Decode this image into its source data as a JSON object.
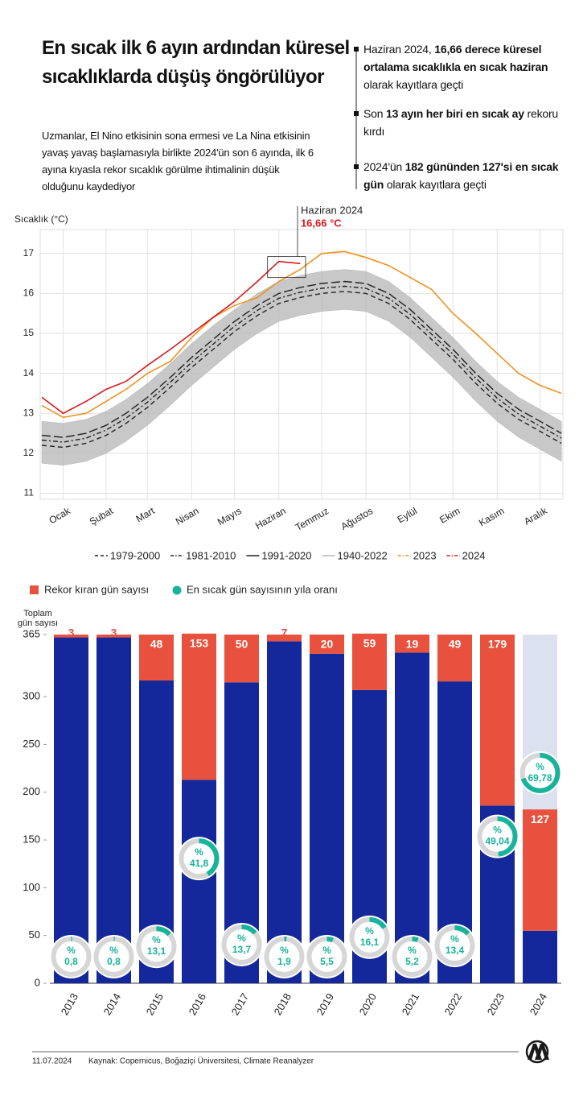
{
  "header": {
    "title": "En sıcak ilk 6 ayın ardından küresel sıcaklıklarda düşüş öngörülüyor",
    "subtitle": "Uzmanlar, El Nino etkisinin sona ermesi ve La Nina etkisinin yavaş yavaş başlamasıyla birlikte 2024'ün son 6 ayında, ilk 6 ayına kıyasla rekor sıcaklık görülme ihtimalinin düşük olduğunu kaydediyor"
  },
  "highlights": [
    [
      {
        "text": "Haziran 2024, "
      },
      {
        "text": "16,66 derece küresel ortalama sıcaklıkla en sıcak haziran",
        "bold": true
      },
      {
        "text": " olarak kayıtlara geçti"
      }
    ],
    [
      {
        "text": "Son "
      },
      {
        "text": "13 ayın her biri en sıcak ay",
        "bold": true
      },
      {
        "text": " rekoru kırdı"
      }
    ],
    [
      {
        "text": "2024'ün "
      },
      {
        "text": "182 gününden 127'si en sıcak gün",
        "bold": true
      },
      {
        "text": " olarak kayıtlara geçti"
      }
    ]
  ],
  "chart_data": [
    {
      "type": "line",
      "y_label": "Sıcaklık (°C)",
      "x": [
        1,
        16,
        32,
        46,
        60,
        75,
        91,
        106,
        121,
        136,
        152,
        167,
        182,
        197,
        213,
        228,
        244,
        259,
        274,
        289,
        305,
        320,
        335,
        350,
        365
      ],
      "xlim": [
        1,
        366
      ],
      "xticks": [
        {
          "value": 16,
          "label": "Ocak"
        },
        {
          "value": 46,
          "label": "Şubat"
        },
        {
          "value": 75,
          "label": "Mart"
        },
        {
          "value": 106,
          "label": "Nisan"
        },
        {
          "value": 136,
          "label": "Mayıs"
        },
        {
          "value": 167,
          "label": "Haziran"
        },
        {
          "value": 197,
          "label": "Temmuz"
        },
        {
          "value": 228,
          "label": "Ağustos"
        },
        {
          "value": 259,
          "label": "Eylül"
        },
        {
          "value": 289,
          "label": "Ekim"
        },
        {
          "value": 320,
          "label": "Kasım"
        },
        {
          "value": 350,
          "label": "Aralık"
        }
      ],
      "ylim": [
        10.85,
        17.6
      ],
      "yticks": [
        11,
        12,
        13,
        14,
        15,
        16,
        17
      ],
      "grid": true,
      "series": [
        {
          "name": "1979-2000",
          "color": "#222222",
          "style": "dashed",
          "values": [
            12.2,
            12.15,
            12.25,
            12.45,
            12.75,
            13.15,
            13.65,
            14.15,
            14.6,
            15.05,
            15.45,
            15.75,
            15.9,
            16.0,
            16.05,
            16.0,
            15.75,
            15.35,
            14.85,
            14.35,
            13.75,
            13.25,
            12.85,
            12.55,
            12.25
          ]
        },
        {
          "name": "1981-2010",
          "color": "#222222",
          "style": "dashdot",
          "values": [
            12.33,
            12.28,
            12.38,
            12.58,
            12.88,
            13.28,
            13.78,
            14.28,
            14.73,
            15.18,
            15.58,
            15.88,
            16.03,
            16.13,
            16.18,
            16.13,
            15.88,
            15.48,
            14.98,
            14.48,
            13.88,
            13.38,
            12.98,
            12.68,
            12.38
          ]
        },
        {
          "name": "1991-2020",
          "color": "#222222",
          "style": "longdash",
          "values": [
            12.45,
            12.4,
            12.5,
            12.7,
            13.0,
            13.4,
            13.9,
            14.4,
            14.85,
            15.3,
            15.7,
            16.0,
            16.15,
            16.25,
            16.3,
            16.25,
            16.0,
            15.6,
            15.1,
            14.6,
            14.0,
            13.5,
            13.1,
            12.8,
            12.5
          ]
        },
        {
          "name": "1940-2022",
          "color": "#b5b5b5",
          "style": "band",
          "low": [
            11.75,
            11.7,
            11.8,
            12.0,
            12.3,
            12.7,
            13.2,
            13.7,
            14.15,
            14.6,
            15.0,
            15.3,
            15.45,
            15.55,
            15.6,
            15.55,
            15.3,
            14.9,
            14.4,
            13.9,
            13.3,
            12.8,
            12.4,
            12.1,
            11.8
          ],
          "high": [
            12.8,
            12.75,
            12.85,
            13.05,
            13.35,
            13.75,
            14.25,
            14.75,
            15.2,
            15.6,
            16.0,
            16.3,
            16.45,
            16.55,
            16.6,
            16.55,
            16.3,
            15.9,
            15.4,
            14.9,
            14.3,
            13.8,
            13.4,
            13.1,
            12.8
          ]
        },
        {
          "name": "2023",
          "color": "#f0921e",
          "style": "solid",
          "values": [
            13.2,
            12.9,
            13.0,
            13.3,
            13.6,
            14.0,
            14.3,
            14.9,
            15.4,
            15.7,
            15.9,
            16.3,
            16.6,
            17.0,
            17.05,
            16.9,
            16.7,
            16.4,
            16.1,
            15.5,
            15.0,
            14.5,
            14.0,
            13.7,
            13.5
          ]
        },
        {
          "name": "2024",
          "color": "#d7191c",
          "style": "solid",
          "values": [
            13.4,
            13.0,
            13.3,
            13.6,
            13.8,
            14.2,
            14.6,
            15.0,
            15.4,
            15.8,
            16.3,
            16.8,
            16.75,
            null,
            null,
            null,
            null,
            null,
            null,
            null,
            null,
            null,
            null,
            null,
            null
          ]
        }
      ],
      "annotation": {
        "text": "Haziran 2024",
        "value": 16.66,
        "label": "16,66 °C"
      }
    },
    {
      "type": "stacked_bar",
      "y_label": "Toplam gün sayısı",
      "categories": [
        "2013",
        "2014",
        "2015",
        "2016",
        "2017",
        "2018",
        "2019",
        "2020",
        "2021",
        "2022",
        "2023",
        "2024"
      ],
      "ylim": [
        0,
        365
      ],
      "yticks": [
        0,
        50,
        100,
        150,
        200,
        250,
        300,
        365
      ],
      "series": [
        {
          "color": "#14279b",
          "values": [
            362,
            362,
            317,
            213,
            315,
            358,
            345,
            307,
            346,
            316,
            186,
            55
          ]
        },
        {
          "name": "Rekor kıran gün sayısı",
          "color": "#e8513d",
          "values": [
            3,
            3,
            48,
            153,
            50,
            7,
            20,
            59,
            19,
            49,
            179,
            127
          ]
        }
      ],
      "ratio": {
        "name": "En sıcak gün sayısının yıla oranı",
        "color": "#17b39b",
        "values": [
          0.8,
          0.8,
          13.1,
          41.8,
          13.7,
          1.9,
          5.5,
          16.1,
          5.2,
          13.4,
          49.04,
          69.78
        ],
        "value_labels": [
          "% 0,8",
          "% 0,8",
          "% 13,1",
          "% 41,8",
          "% 13,7",
          "% 1,9",
          "% 5,5",
          "% 16,1",
          "% 5,2",
          "% 13,4",
          "% 49,04",
          "% 69,78"
        ]
      }
    }
  ],
  "footer": {
    "date": "11.07.2024",
    "source": "Kaynak: Copernicus, Boğaziçi Üniversitesi, Climate Reanalyzer"
  }
}
